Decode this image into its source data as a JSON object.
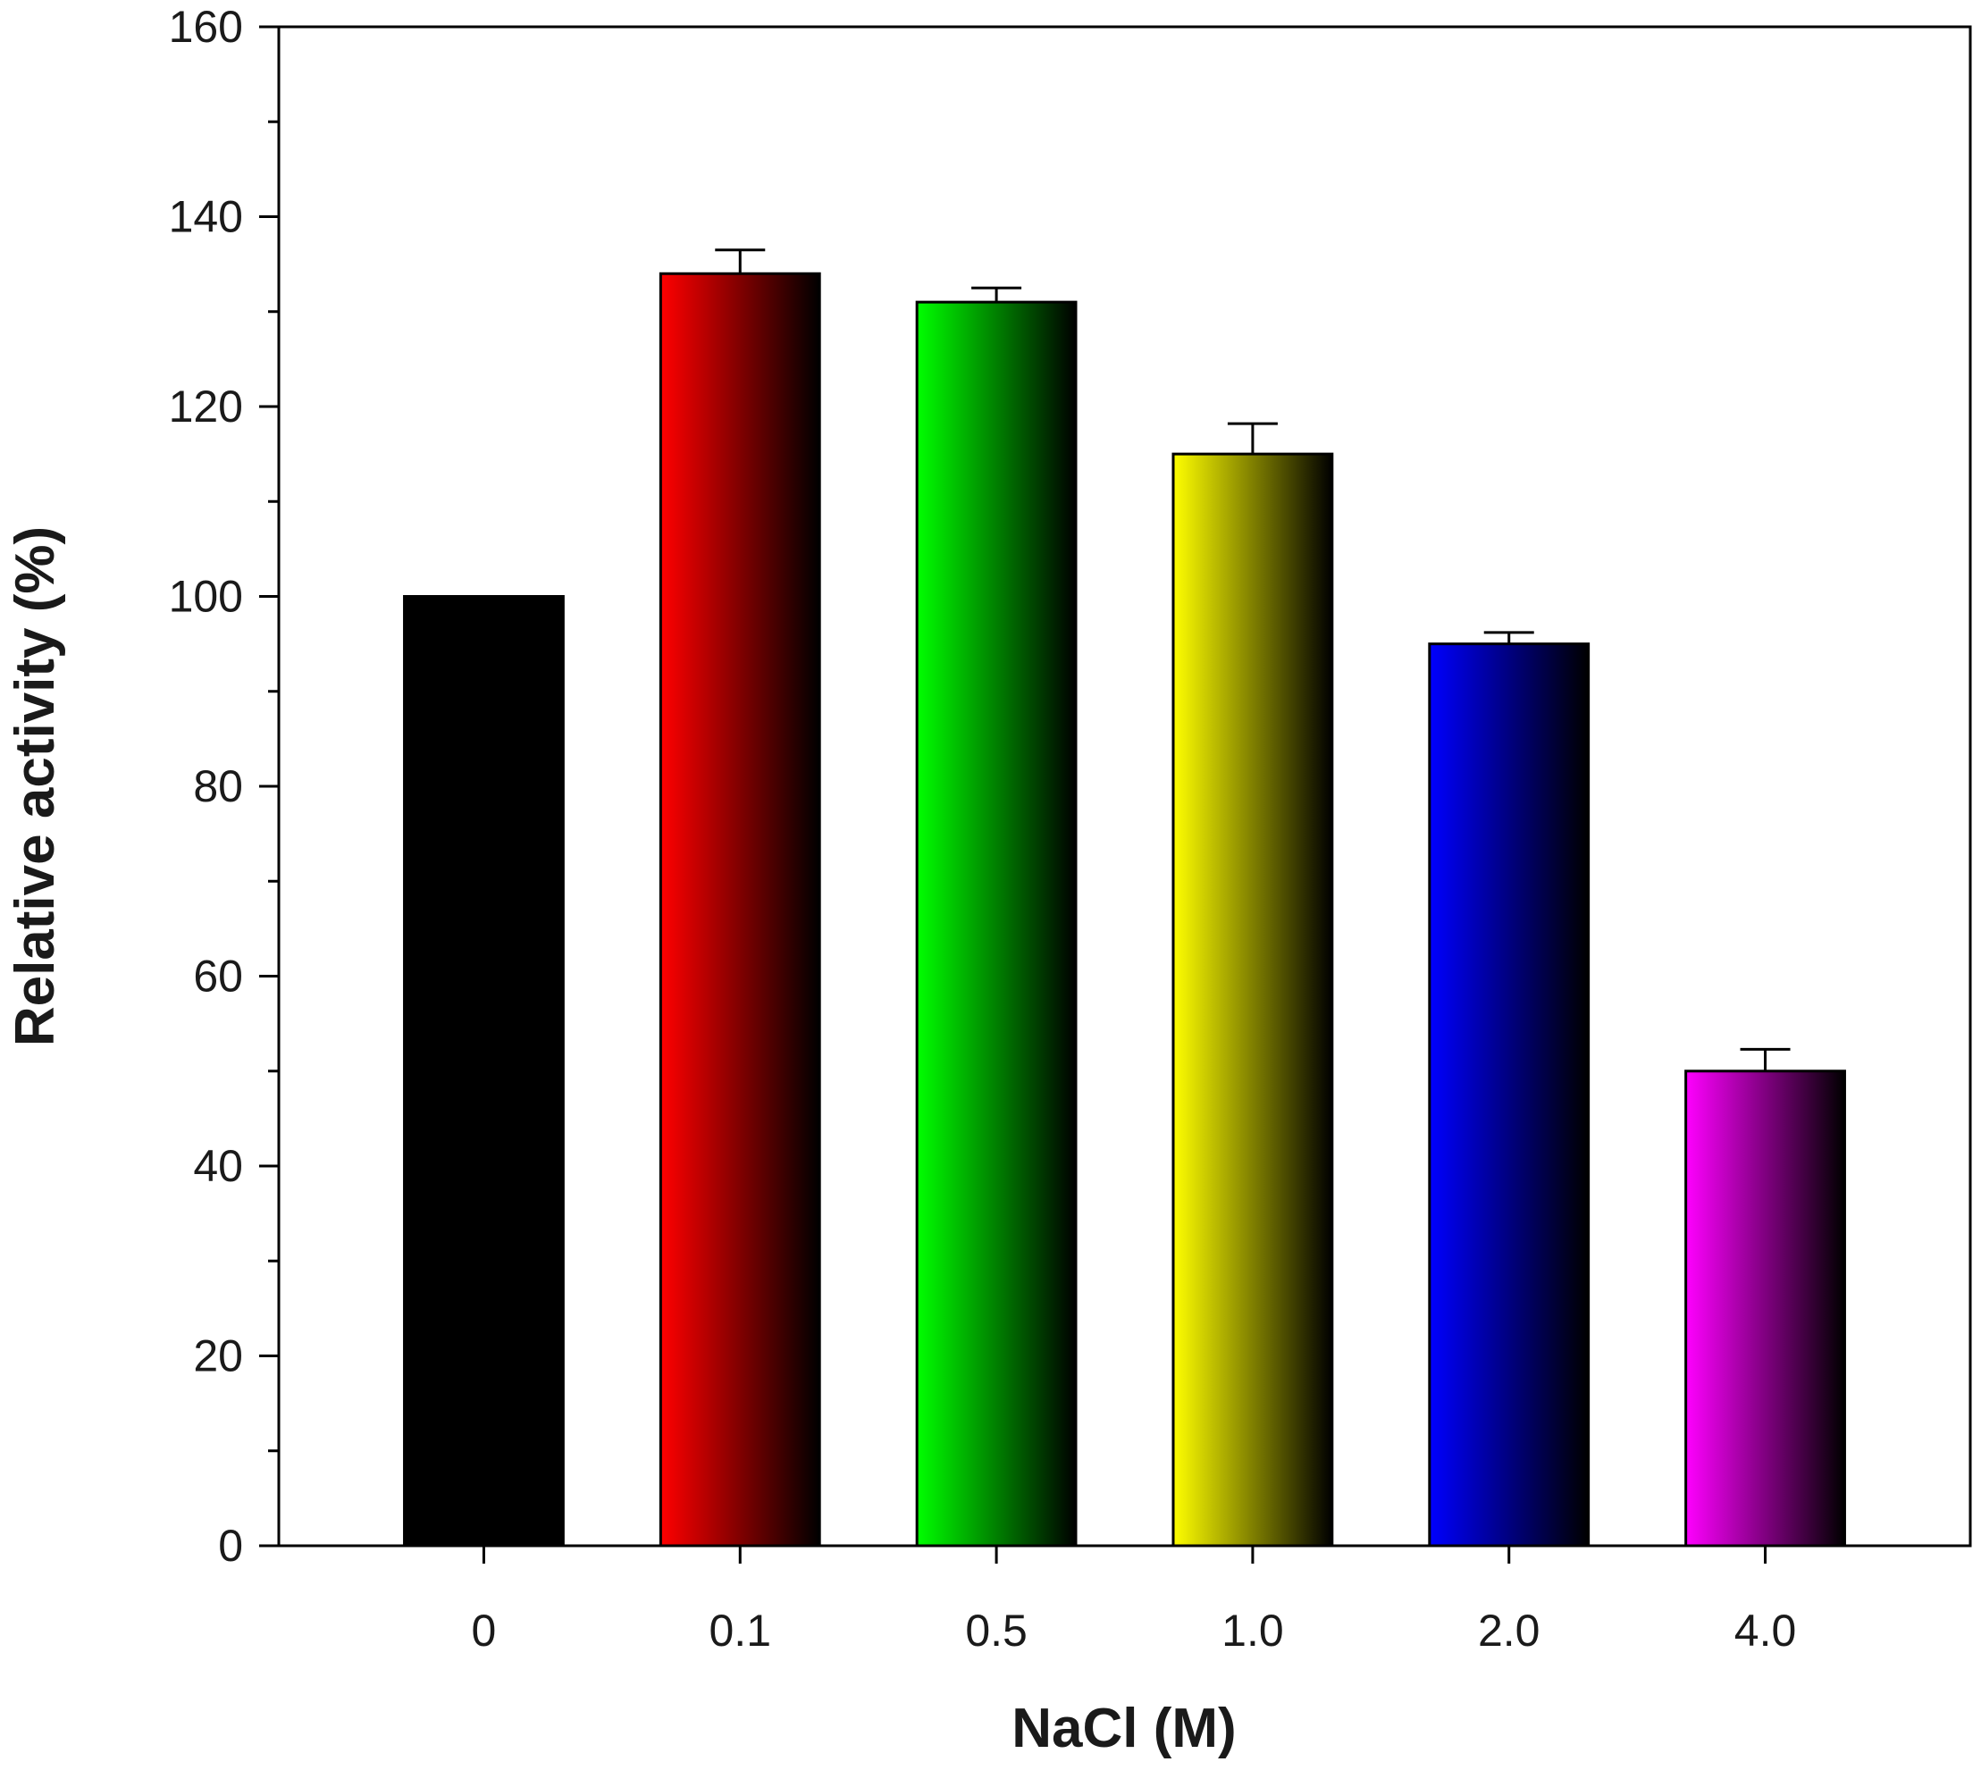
{
  "chart_data": {
    "type": "bar",
    "title": "",
    "xlabel": "NaCl (M)",
    "ylabel": "Relative activity (%)",
    "categories": [
      "0",
      "0.1",
      "0.5",
      "1.0",
      "2.0",
      "4.0"
    ],
    "values": [
      100,
      134,
      131,
      115,
      95,
      50
    ],
    "errors": [
      0,
      2.5,
      1.5,
      3.2,
      1.2,
      2.3
    ],
    "ylim": [
      0,
      160
    ],
    "yticks": [
      "0",
      "20",
      "40",
      "60",
      "80",
      "100",
      "120",
      "140",
      "160"
    ],
    "grid": false,
    "legend": "none",
    "bar_colors": [
      "#000000",
      "#ff0000",
      "#00ff00",
      "#ffff00",
      "#0000ff",
      "#ff00ff"
    ]
  }
}
